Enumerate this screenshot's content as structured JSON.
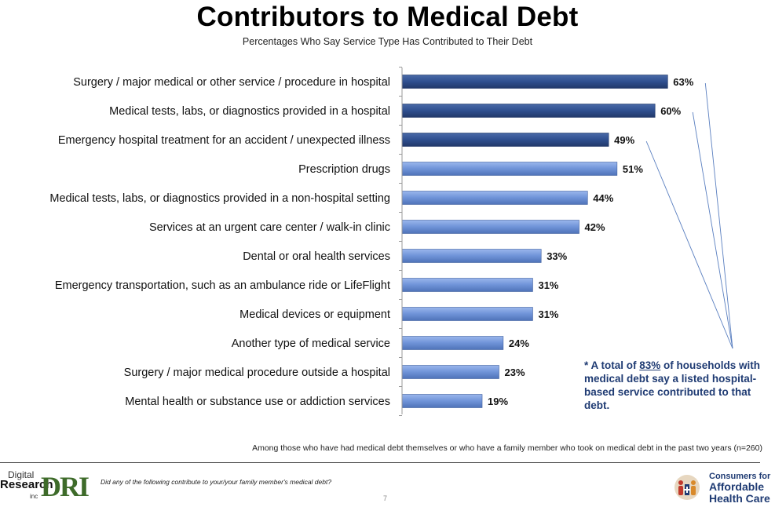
{
  "header": {
    "title": "Contributors to Medical Debt",
    "subtitle": "Percentages Who Say Service Type Has Contributed to Their Debt"
  },
  "chart_data": {
    "type": "bar",
    "orientation": "horizontal",
    "title": "Contributors to Medical Debt",
    "subtitle": "Percentages Who Say Service Type Has Contributed to Their Debt",
    "xlim": [
      0,
      100
    ],
    "grid": false,
    "categories": [
      "Surgery / major medical or other service / procedure in hospital",
      "Medical tests, labs, or diagnostics provided in a hospital",
      "Emergency hospital treatment for an accident / unexpected illness",
      "Prescription drugs",
      "Medical tests, labs, or diagnostics provided in a non-hospital setting",
      "Services at an urgent care center / walk-in clinic",
      "Dental or oral health services",
      "Emergency transportation, such as an ambulance ride or LifeFlight",
      "Medical devices or equipment",
      "Another type of medical service",
      "Surgery / major medical procedure outside a hospital",
      "Mental health or substance use or addiction services"
    ],
    "values": [
      63,
      60,
      49,
      51,
      44,
      42,
      33,
      31,
      31,
      24,
      23,
      19
    ],
    "value_labels": [
      "63%",
      "60%",
      "49%",
      "51%",
      "44%",
      "42%",
      "33%",
      "31%",
      "31%",
      "24%",
      "23%",
      "19%"
    ],
    "hospital_based": [
      true,
      true,
      true,
      false,
      false,
      false,
      false,
      false,
      false,
      false,
      false,
      false
    ],
    "colors": {
      "hospital": "#2f4f8f",
      "other": "#6f93d8",
      "label": "#111111",
      "connector": "#5a7fc0"
    }
  },
  "callout": {
    "prefix": "* A total of ",
    "highlight": "83%",
    "suffix": " of households with medical debt say a listed hospital-based service contributed to that debt."
  },
  "footer": {
    "note": "Among those who have had medical debt themselves or who have a family member who took on medical debt in the past two years (n=260)",
    "question": "Did any of the following contribute to your/your family member's medical debt?",
    "page_number": "7"
  },
  "logos": {
    "left": {
      "line1": "Digital",
      "line2": "Research",
      "line3": "inc",
      "mark": "DRI"
    },
    "right": {
      "line1": "Consumers for",
      "line2": "Affordable",
      "line3": "Health Care"
    }
  }
}
